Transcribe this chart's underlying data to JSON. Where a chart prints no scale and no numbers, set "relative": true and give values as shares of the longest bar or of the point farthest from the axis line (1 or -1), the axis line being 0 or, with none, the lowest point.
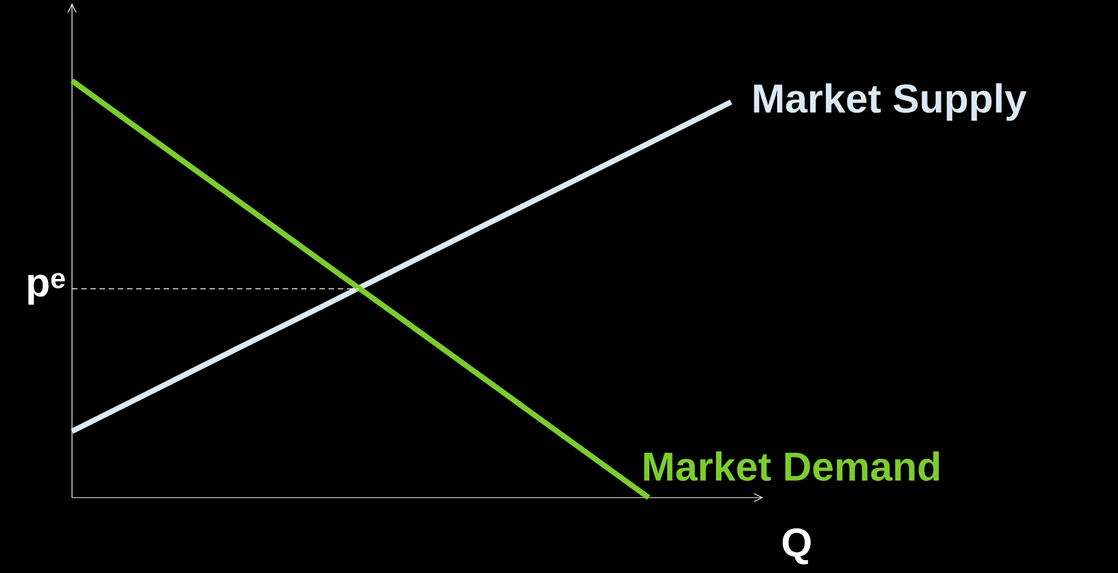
{
  "chart_data": {
    "type": "line",
    "relative": true,
    "xlabel": "Q",
    "categories": [
      null,
      null,
      null,
      null,
      null,
      null,
      null,
      null,
      null
    ],
    "series": [
      {
        "name": "Market Supply",
        "color": "#dce9f5",
        "values": [
          0.159,
          0.258,
          0.357,
          0.455,
          0.554,
          0.653,
          0.751,
          0.85,
          0.949
        ]
      },
      {
        "name": "Market Demand",
        "color": "#7ccc2e",
        "values": [
          1,
          0.857,
          0.714,
          0.571,
          0.429,
          0.286,
          0.143,
          0,
          null
        ]
      }
    ],
    "ref_lines": [
      {
        "axis": "y",
        "value": 0.501,
        "label": "p$^{e}$",
        "color": "#ffffff",
        "line_style": "dashed"
      }
    ]
  }
}
